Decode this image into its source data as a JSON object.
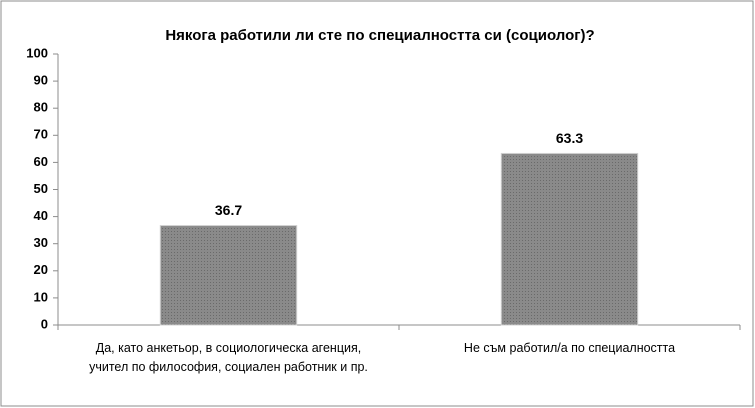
{
  "chart_data": {
    "type": "bar",
    "title": "Някога работили ли сте по специалността си (социолог)?",
    "categories": [
      "Да, като анкетьор, в социологическа агенция, учител по философия, социален работник и пр.",
      "Не съм работил/а по специалността"
    ],
    "values": [
      36.7,
      63.3
    ],
    "color": "#7f7f7f",
    "ylim": [
      0,
      100
    ],
    "yticks": [
      0,
      10,
      20,
      30,
      40,
      50,
      60,
      70,
      80,
      90,
      100
    ],
    "grid": false
  }
}
